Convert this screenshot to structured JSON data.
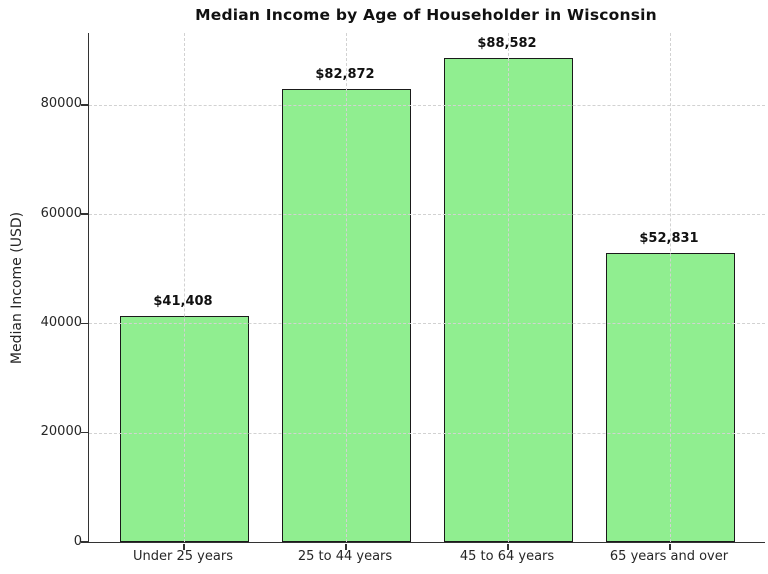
{
  "figure": {
    "title": "Median Income by Age of Householder in Wisconsin",
    "ylabel": "Median Income (USD)"
  },
  "chart_data": {
    "type": "bar",
    "title": "Median Income by Age of Householder in Wisconsin",
    "xlabel": "",
    "ylabel": "Median Income (USD)",
    "categories": [
      "Under 25 years",
      "25 to 44 years",
      "45 to 64 years",
      "65 years and over"
    ],
    "values": [
      41408,
      82872,
      88582,
      52831
    ],
    "bar_labels": [
      "$41,408",
      "$82,872",
      "$88,582",
      "$52,831"
    ],
    "yticks": [
      0,
      20000,
      40000,
      60000,
      80000
    ],
    "ytick_labels": [
      "0",
      "20000",
      "40000",
      "60000",
      "80000"
    ],
    "ylim": [
      0,
      93180
    ],
    "grid": "dashed gridlines on both axes, drawn above bars",
    "legend": "none",
    "colors": {
      "bar_fill": "#90EE90",
      "bar_edge": "#1a1a1a",
      "grid": "#d2d2d2",
      "axis": "#333333",
      "text": "#262626",
      "title": "#111111"
    }
  }
}
